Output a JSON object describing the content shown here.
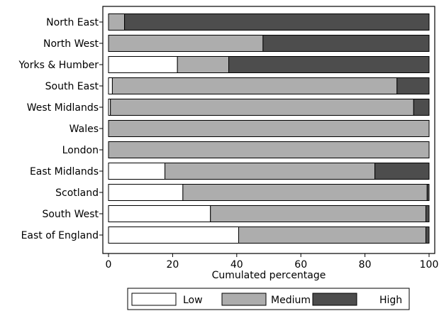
{
  "chart_data": {
    "type": "bar",
    "orientation": "horizontal",
    "stacked": true,
    "categories": [
      "North East",
      "North West",
      "Yorks & Humber",
      "South East",
      "West Midlands",
      "Wales",
      "London",
      "East Midlands",
      "Scotland",
      "South West",
      "East of England"
    ],
    "series": [
      {
        "name": "Low",
        "color": "#ffffff",
        "values": [
          0,
          0,
          21.5,
          1.2,
          0.6,
          0,
          0,
          17.6,
          23.2,
          31.8,
          40.6
        ]
      },
      {
        "name": "Medium",
        "color": "#adadad",
        "values": [
          5,
          48.2,
          16,
          88.8,
          94.6,
          100,
          100,
          65.5,
          76.2,
          67.2,
          58.4
        ]
      },
      {
        "name": "High",
        "color": "#4d4d4d",
        "values": [
          95,
          51.8,
          62.5,
          10,
          4.8,
          0,
          0,
          16.9,
          0.6,
          1.0,
          1.0
        ]
      }
    ],
    "xlabel": "Cumulated percentage",
    "xlim": [
      0,
      100
    ],
    "xticks": [
      0,
      20,
      40,
      60,
      80,
      100
    ],
    "legend_position": "bottom",
    "grid": false
  }
}
